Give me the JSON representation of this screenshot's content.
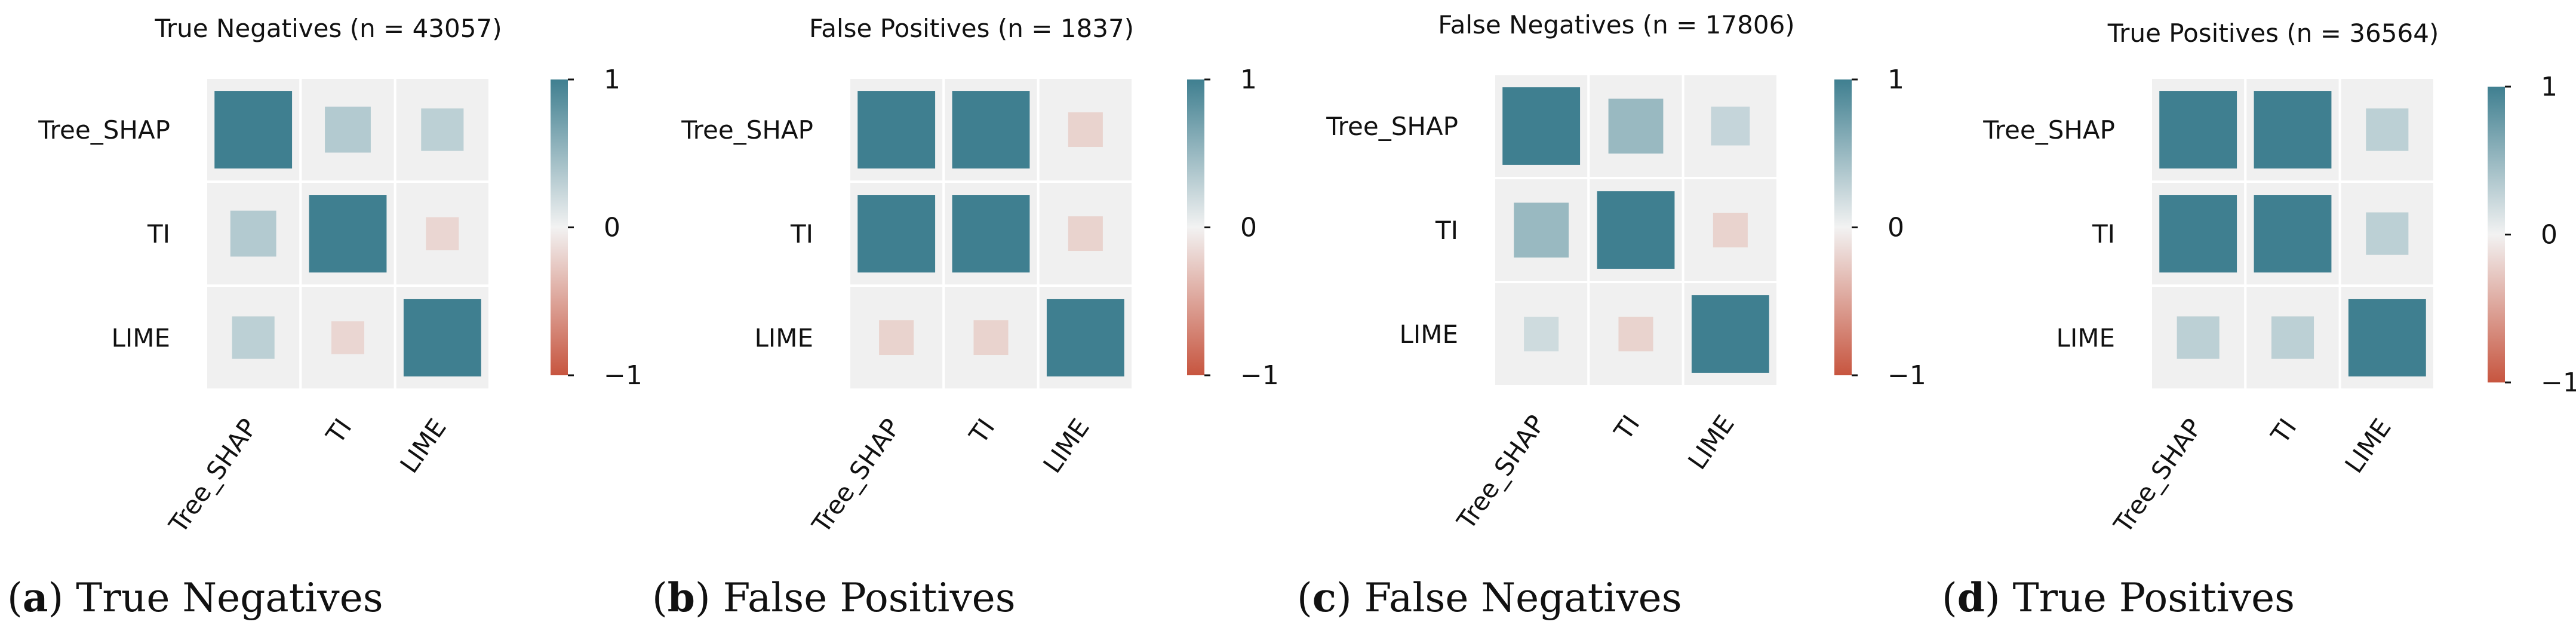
{
  "chart_data": [
    {
      "type": "heatmap",
      "title": "True Negatives (n = 43057)",
      "caption_letter": "a",
      "caption_text": "True Negatives",
      "row_labels": [
        "Tree_SHAP",
        "TI",
        "LIME"
      ],
      "col_labels": [
        "Tree_SHAP",
        "TI",
        "LIME"
      ],
      "values": [
        [
          1.0,
          0.35,
          0.3
        ],
        [
          0.35,
          1.0,
          -0.18
        ],
        [
          0.3,
          -0.18,
          1.0
        ]
      ],
      "colorbar": {
        "ticks": [
          1,
          0,
          -1
        ],
        "tick_labels": [
          "1",
          "0",
          "−1"
        ],
        "range": [
          -1,
          1
        ]
      }
    },
    {
      "type": "heatmap",
      "title": "False Positives (n = 1837)",
      "caption_letter": "b",
      "caption_text": "False Positives",
      "row_labels": [
        "Tree_SHAP",
        "TI",
        "LIME"
      ],
      "col_labels": [
        "Tree_SHAP",
        "TI",
        "LIME"
      ],
      "values": [
        [
          1.0,
          1.0,
          -0.2
        ],
        [
          1.0,
          1.0,
          -0.2
        ],
        [
          -0.2,
          -0.2,
          1.0
        ]
      ],
      "colorbar": {
        "ticks": [
          1,
          0,
          -1
        ],
        "tick_labels": [
          "1",
          "0",
          "−1"
        ],
        "range": [
          -1,
          1
        ]
      }
    },
    {
      "type": "heatmap",
      "title": "False Negatives (n = 17806)",
      "caption_letter": "c",
      "caption_text": "False Negatives",
      "row_labels": [
        "Tree_SHAP",
        "TI",
        "LIME"
      ],
      "col_labels": [
        "Tree_SHAP",
        "TI",
        "LIME"
      ],
      "values": [
        [
          1.0,
          0.5,
          0.25
        ],
        [
          0.5,
          1.0,
          -0.2
        ],
        [
          0.2,
          -0.2,
          1.0
        ]
      ],
      "colorbar": {
        "ticks": [
          1,
          0,
          -1
        ],
        "tick_labels": [
          "1",
          "0",
          "−1"
        ],
        "range": [
          -1,
          1
        ]
      }
    },
    {
      "type": "heatmap",
      "title": "True Positives (n = 36564)",
      "caption_letter": "d",
      "caption_text": "True Positives",
      "row_labels": [
        "Tree_SHAP",
        "TI",
        "LIME"
      ],
      "col_labels": [
        "Tree_SHAP",
        "TI",
        "LIME"
      ],
      "values": [
        [
          1.0,
          1.0,
          0.3
        ],
        [
          1.0,
          1.0,
          0.3
        ],
        [
          0.3,
          0.3,
          1.0
        ]
      ],
      "colorbar": {
        "ticks": [
          1,
          0,
          -1
        ],
        "tick_labels": [
          "1",
          "0",
          "−1"
        ],
        "range": [
          -1,
          1
        ]
      }
    }
  ],
  "colors": {
    "positive": "#3f7f90",
    "neutral": "#f2f2f2",
    "negative": "#c7553f",
    "cell_background": "#f0f0f0",
    "text": "#111111"
  }
}
